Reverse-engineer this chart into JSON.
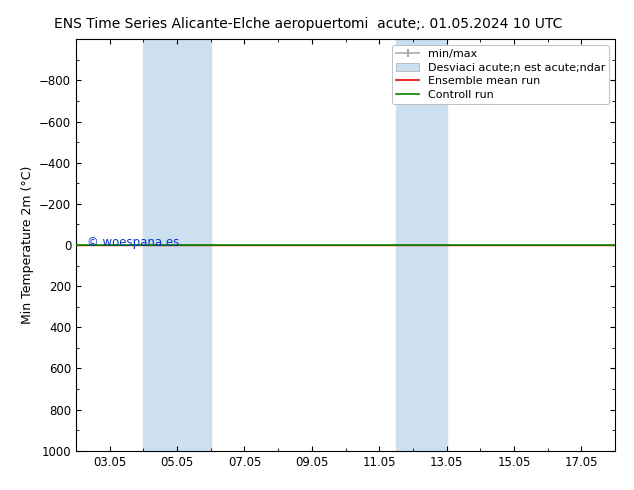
{
  "title_left": "ENS Time Series Alicante-Elche aeropuerto",
  "title_right": "mi  acute;. 01.05.2024 10 UTC",
  "ylabel": "Min Temperature 2m (°C)",
  "ylim_bottom": 1000,
  "ylim_top": -1000,
  "yticks": [
    -800,
    -600,
    -400,
    -200,
    0,
    200,
    400,
    600,
    800,
    1000
  ],
  "xlim_left": 2.0,
  "xlim_right": 18.0,
  "xtick_labels": [
    "03.05",
    "05.05",
    "07.05",
    "09.05",
    "11.05",
    "13.05",
    "15.05",
    "17.05"
  ],
  "xtick_positions": [
    3,
    5,
    7,
    9,
    11,
    13,
    15,
    17
  ],
  "shade_regions": [
    {
      "x_start": 4.0,
      "x_end": 6.0
    },
    {
      "x_start": 11.5,
      "x_end": 13.0
    }
  ],
  "shade_color": "#cce0f0",
  "green_line_color": "#008800",
  "red_line_color": "#ee0000",
  "watermark_text": "© woespana.es",
  "background_color": "#ffffff",
  "grid_color": "#dddddd",
  "title_fontsize": 10,
  "axis_label_fontsize": 9,
  "tick_fontsize": 8.5,
  "legend_fontsize": 8
}
